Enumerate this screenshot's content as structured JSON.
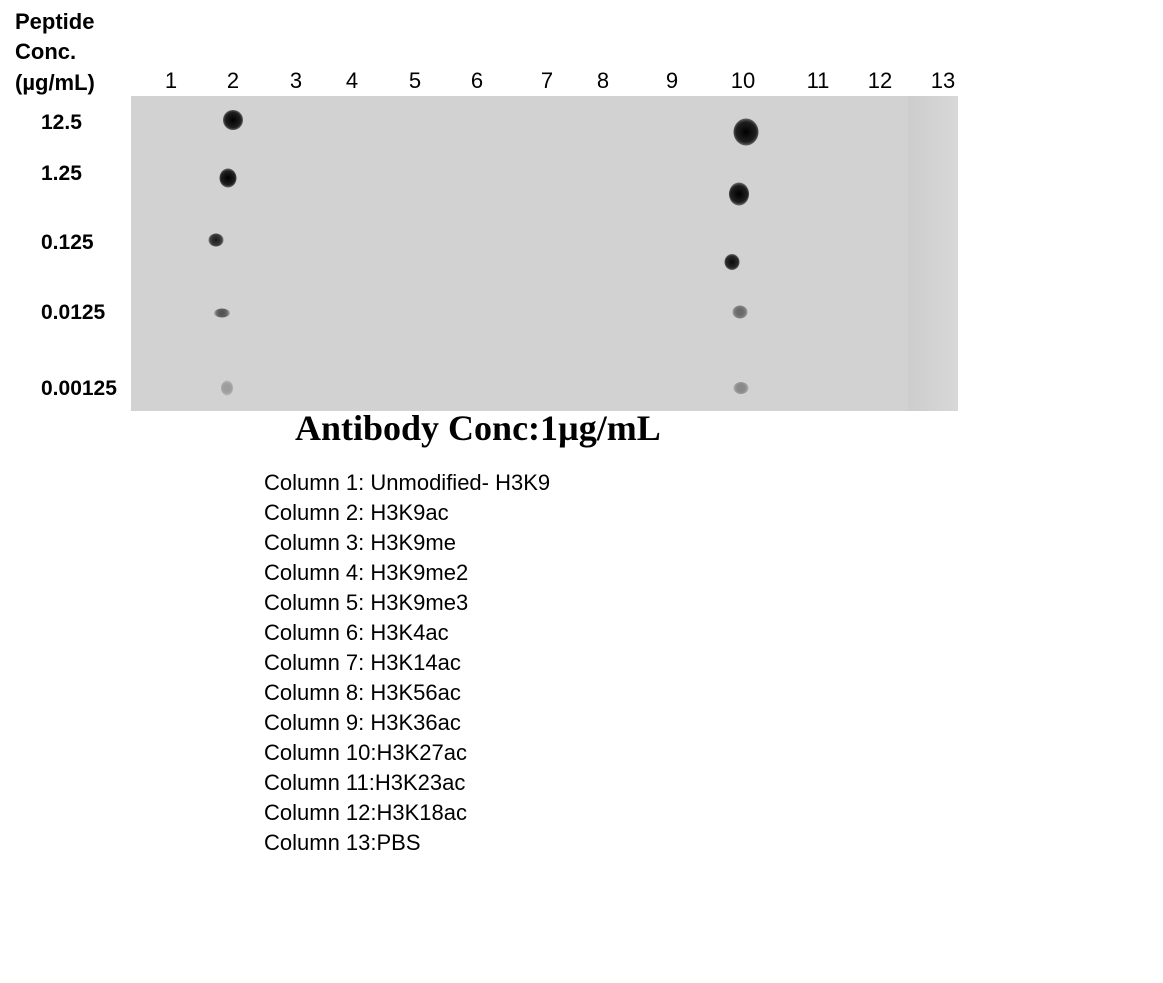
{
  "axis_title": [
    "Peptide",
    "Conc.",
    "(µg/mL)"
  ],
  "columns": [
    "1",
    "2",
    "3",
    "4",
    "5",
    "6",
    "7",
    "8",
    "9",
    "10",
    "11",
    "12",
    "13"
  ],
  "rows": [
    "12.5",
    "1.25",
    "0.125",
    "0.0125",
    "0.00125"
  ],
  "antibody_label": "Antibody Conc:1µg/mL",
  "legend": [
    "Column 1: Unmodified- H3K9",
    "Column 2: H3K9ac",
    "Column 3: H3K9me",
    "Column 4: H3K9me2",
    "Column 5: H3K9me3",
    "Column 6: H3K4ac",
    "Column 7: H3K14ac",
    "Column 8: H3K56ac",
    "Column 9: H3K36ac",
    "Column 10:H3K27ac",
    "Column 11:H3K23ac",
    "Column 12:H3K18ac",
    "Column 13:PBS"
  ],
  "colors": {
    "membrane": "#d2d2d2",
    "spot": "#000000"
  },
  "spots": [
    {
      "column": "2",
      "row": "12.5",
      "intensity": 1.0
    },
    {
      "column": "2",
      "row": "1.25",
      "intensity": 1.0
    },
    {
      "column": "2",
      "row": "0.125",
      "intensity": 0.85
    },
    {
      "column": "2",
      "row": "0.0125",
      "intensity": 0.6
    },
    {
      "column": "2",
      "row": "0.00125",
      "intensity": 0.25
    },
    {
      "column": "10",
      "row": "12.5",
      "intensity": 1.0
    },
    {
      "column": "10",
      "row": "1.25",
      "intensity": 1.0
    },
    {
      "column": "10",
      "row": "0.125",
      "intensity": 0.95
    },
    {
      "column": "10",
      "row": "0.0125",
      "intensity": 0.5
    },
    {
      "column": "10",
      "row": "0.00125",
      "intensity": 0.35
    }
  ]
}
